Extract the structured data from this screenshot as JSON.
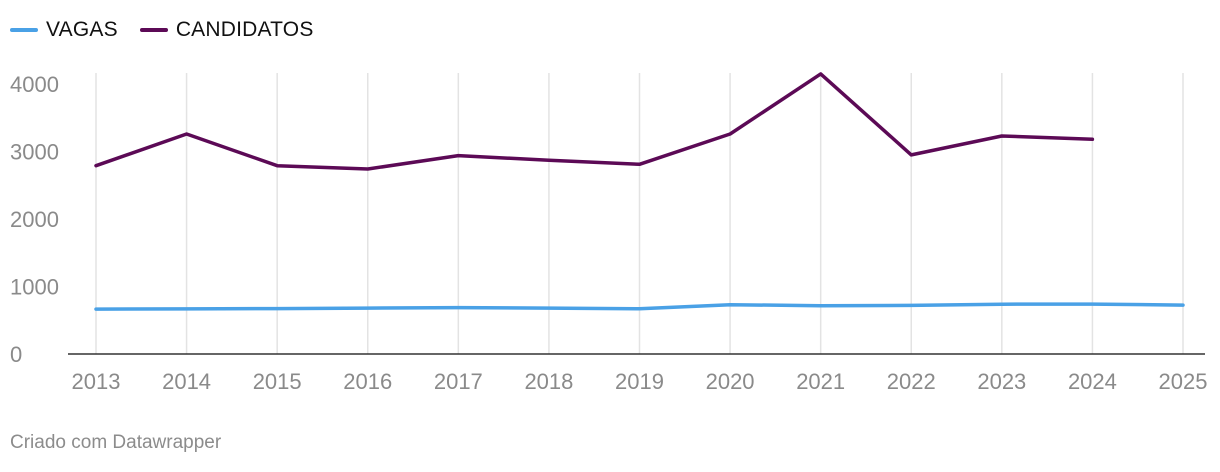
{
  "chart_data": {
    "type": "line",
    "x": [
      "2013",
      "2014",
      "2015",
      "2016",
      "2017",
      "2018",
      "2019",
      "2020",
      "2021",
      "2022",
      "2023",
      "2024",
      "2025"
    ],
    "series": [
      {
        "name": "VAGAS",
        "color": "#4aa1e6",
        "values": [
          665,
          668,
          673,
          680,
          688,
          680,
          670,
          730,
          715,
          720,
          738,
          740,
          725
        ]
      },
      {
        "name": "CANDIDATOS",
        "color": "#5c0a56",
        "values": [
          2790,
          3260,
          2790,
          2740,
          2940,
          2870,
          2810,
          3260,
          4150,
          2950,
          3230,
          3180,
          null
        ]
      }
    ],
    "ylim": [
      0,
      4000
    ],
    "yticks": [
      "0",
      "1000",
      "2000",
      "3000",
      "4000"
    ],
    "grid": "vertical",
    "legend": "top-left"
  },
  "footer": {
    "credit": "Criado com Datawrapper"
  }
}
